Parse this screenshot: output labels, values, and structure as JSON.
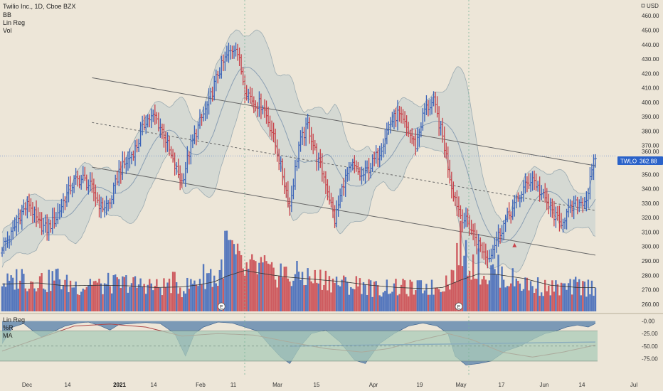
{
  "header": {
    "title": "Twilio Inc., 1D, Cboe BZX",
    "indicators": [
      "BB",
      "Lin Reg",
      "Vol"
    ]
  },
  "price_axis": {
    "currency": "USD",
    "currency_icon": "lock-icon",
    "ticks": [
      "460.00",
      "450.00",
      "440.00",
      "430.00",
      "420.00",
      "410.00",
      "400.00",
      "390.00",
      "380.00",
      "370.00",
      "360.00",
      "350.00",
      "340.00",
      "330.00",
      "320.00",
      "310.00",
      "300.00",
      "290.00",
      "280.00",
      "270.00",
      "260.00"
    ]
  },
  "last_price": {
    "symbol": "TWLO",
    "value": "362.88",
    "partial_label": "360.00"
  },
  "osc_panel": {
    "labels": [
      "Lin Reg",
      "%R",
      "MA"
    ],
    "ticks": [
      "-0.00",
      "-25.00",
      "-50.00",
      "-75.00"
    ]
  },
  "x_axis": {
    "labels": [
      {
        "text": "Dec",
        "bold": false
      },
      {
        "text": "14",
        "bold": false
      },
      {
        "text": "2021",
        "bold": true
      },
      {
        "text": "14",
        "bold": false
      },
      {
        "text": "Feb",
        "bold": false
      },
      {
        "text": "11",
        "bold": false
      },
      {
        "text": "Mar",
        "bold": false
      },
      {
        "text": "15",
        "bold": false
      },
      {
        "text": "Apr",
        "bold": false
      },
      {
        "text": "19",
        "bold": false
      },
      {
        "text": "May",
        "bold": false
      },
      {
        "text": "17",
        "bold": false
      },
      {
        "text": "Jun",
        "bold": false
      },
      {
        "text": "14",
        "bold": false
      },
      {
        "text": "Jul",
        "bold": false
      }
    ]
  },
  "colors": {
    "background": "#ede6d8",
    "up": "#3a63b8",
    "down": "#c8434b",
    "bb_fill": "#b9c9cf",
    "basis": "#8b9fb3",
    "osc_fill": "#4a78a8",
    "osc_band": "#a9cbb8",
    "ma_line": "#b04848",
    "trend_line": "#2c55c8",
    "price_badge": "#2a62c9"
  },
  "chart_data": {
    "type": "ohlc",
    "title": "Twilio Inc., 1D, Cboe BZX",
    "ylabel": "USD",
    "ylim": [
      255,
      467
    ],
    "osc_ylim": [
      -100,
      8
    ],
    "x_labels": [
      "Dec",
      "14",
      "2021",
      "14",
      "Feb",
      "11",
      "Mar",
      "15",
      "Apr",
      "19",
      "May",
      "17",
      "Jun",
      "14",
      "Jul"
    ],
    "close_key": [
      [
        0,
        300
      ],
      [
        5,
        308
      ],
      [
        10,
        322
      ],
      [
        15,
        330
      ],
      [
        20,
        316
      ],
      [
        25,
        312
      ],
      [
        30,
        320
      ],
      [
        35,
        334
      ],
      [
        40,
        345
      ],
      [
        45,
        347
      ],
      [
        50,
        340
      ],
      [
        55,
        327
      ],
      [
        60,
        330
      ],
      [
        65,
        352
      ],
      [
        70,
        360
      ],
      [
        75,
        370
      ],
      [
        80,
        388
      ],
      [
        85,
        390
      ],
      [
        90,
        378
      ],
      [
        95,
        358
      ],
      [
        100,
        345
      ],
      [
        105,
        370
      ],
      [
        110,
        386
      ],
      [
        115,
        400
      ],
      [
        120,
        420
      ],
      [
        125,
        432
      ],
      [
        130,
        440
      ],
      [
        135,
        410
      ],
      [
        140,
        400
      ],
      [
        145,
        398
      ],
      [
        150,
        380
      ],
      [
        155,
        355
      ],
      [
        160,
        328
      ],
      [
        165,
        370
      ],
      [
        170,
        384
      ],
      [
        175,
        362
      ],
      [
        180,
        345
      ],
      [
        185,
        318
      ],
      [
        190,
        345
      ],
      [
        195,
        356
      ],
      [
        200,
        348
      ],
      [
        205,
        356
      ],
      [
        210,
        366
      ],
      [
        215,
        384
      ],
      [
        220,
        392
      ],
      [
        225,
        382
      ],
      [
        230,
        370
      ],
      [
        235,
        395
      ],
      [
        240,
        400
      ],
      [
        245,
        376
      ],
      [
        250,
        342
      ],
      [
        255,
        322
      ],
      [
        260,
        314
      ],
      [
        265,
        302
      ],
      [
        270,
        292
      ],
      [
        275,
        305
      ],
      [
        280,
        318
      ],
      [
        285,
        328
      ],
      [
        290,
        340
      ],
      [
        295,
        348
      ],
      [
        300,
        336
      ],
      [
        305,
        326
      ],
      [
        310,
        316
      ],
      [
        315,
        324
      ],
      [
        320,
        330
      ],
      [
        325,
        333
      ],
      [
        330,
        362.88
      ]
    ],
    "volume_key": [
      [
        0,
        54
      ],
      [
        5,
        48
      ],
      [
        10,
        65
      ],
      [
        15,
        52
      ],
      [
        20,
        58
      ],
      [
        25,
        50
      ],
      [
        30,
        62
      ],
      [
        35,
        48
      ],
      [
        40,
        47
      ],
      [
        45,
        43
      ],
      [
        50,
        55
      ],
      [
        55,
        42
      ],
      [
        60,
        50
      ],
      [
        65,
        46
      ],
      [
        70,
        52
      ],
      [
        75,
        45
      ],
      [
        80,
        50
      ],
      [
        85,
        42
      ],
      [
        90,
        44
      ],
      [
        95,
        52
      ],
      [
        100,
        40
      ],
      [
        105,
        47
      ],
      [
        110,
        58
      ],
      [
        115,
        68
      ],
      [
        120,
        52
      ],
      [
        125,
        120
      ],
      [
        130,
        92
      ],
      [
        135,
        70
      ],
      [
        140,
        75
      ],
      [
        145,
        78
      ],
      [
        150,
        62
      ],
      [
        155,
        72
      ],
      [
        160,
        58
      ],
      [
        165,
        65
      ],
      [
        170,
        60
      ],
      [
        175,
        55
      ],
      [
        180,
        58
      ],
      [
        185,
        52
      ],
      [
        190,
        48
      ],
      [
        195,
        45
      ],
      [
        200,
        50
      ],
      [
        205,
        42
      ],
      [
        210,
        38
      ],
      [
        215,
        45
      ],
      [
        220,
        40
      ],
      [
        225,
        42
      ],
      [
        230,
        38
      ],
      [
        235,
        45
      ],
      [
        240,
        40
      ],
      [
        245,
        50
      ],
      [
        250,
        60
      ],
      [
        255,
        115
      ],
      [
        260,
        90
      ],
      [
        265,
        80
      ],
      [
        270,
        62
      ],
      [
        275,
        75
      ],
      [
        280,
        58
      ],
      [
        285,
        55
      ],
      [
        290,
        50
      ],
      [
        295,
        45
      ],
      [
        300,
        44
      ],
      [
        305,
        40
      ],
      [
        310,
        42
      ],
      [
        315,
        40
      ],
      [
        320,
        45
      ],
      [
        325,
        42
      ],
      [
        330,
        45
      ]
    ],
    "vol_ma_key": [
      [
        0,
        48
      ],
      [
        20,
        50
      ],
      [
        35,
        45
      ],
      [
        55,
        46
      ],
      [
        70,
        45
      ],
      [
        85,
        42
      ],
      [
        100,
        43
      ],
      [
        110,
        47
      ],
      [
        118,
        52
      ],
      [
        125,
        62
      ],
      [
        135,
        72
      ],
      [
        142,
        68
      ],
      [
        150,
        64
      ],
      [
        160,
        60
      ],
      [
        175,
        56
      ],
      [
        190,
        52
      ],
      [
        205,
        46
      ],
      [
        220,
        42
      ],
      [
        235,
        40
      ],
      [
        245,
        42
      ],
      [
        255,
        55
      ],
      [
        265,
        66
      ],
      [
        275,
        65
      ],
      [
        290,
        58
      ],
      [
        305,
        46
      ],
      [
        320,
        42
      ],
      [
        330,
        42
      ]
    ],
    "osc_key": [
      [
        0,
        -45
      ],
      [
        6,
        -12
      ],
      [
        12,
        -5
      ],
      [
        18,
        -22
      ],
      [
        22,
        -32
      ],
      [
        28,
        -22
      ],
      [
        35,
        -10
      ],
      [
        42,
        -4
      ],
      [
        48,
        -2
      ],
      [
        55,
        -10
      ],
      [
        60,
        -18
      ],
      [
        65,
        -7
      ],
      [
        72,
        -5
      ],
      [
        80,
        -3
      ],
      [
        88,
        -5
      ],
      [
        96,
        -25
      ],
      [
        102,
        -70
      ],
      [
        107,
        -25
      ],
      [
        112,
        -12
      ],
      [
        120,
        -2
      ],
      [
        128,
        -4
      ],
      [
        135,
        -12
      ],
      [
        142,
        -20
      ],
      [
        148,
        -45
      ],
      [
        155,
        -72
      ],
      [
        160,
        -85
      ],
      [
        166,
        -50
      ],
      [
        172,
        -25
      ],
      [
        180,
        -18
      ],
      [
        188,
        -42
      ],
      [
        196,
        -78
      ],
      [
        202,
        -85
      ],
      [
        210,
        -45
      ],
      [
        218,
        -25
      ],
      [
        226,
        -10
      ],
      [
        234,
        -4
      ],
      [
        242,
        -10
      ],
      [
        248,
        -25
      ],
      [
        252,
        -70
      ],
      [
        258,
        -88
      ],
      [
        265,
        -85
      ],
      [
        272,
        -80
      ],
      [
        280,
        -60
      ],
      [
        288,
        -50
      ],
      [
        296,
        -35
      ],
      [
        302,
        -25
      ],
      [
        308,
        -20
      ],
      [
        314,
        -12
      ],
      [
        320,
        -8
      ],
      [
        326,
        -12
      ],
      [
        330,
        -5
      ]
    ],
    "osc_ma_key": [
      [
        0,
        -60
      ],
      [
        20,
        -35
      ],
      [
        40,
        -10
      ],
      [
        60,
        -6
      ],
      [
        80,
        -12
      ],
      [
        100,
        -30
      ],
      [
        120,
        -25
      ],
      [
        140,
        -28
      ],
      [
        160,
        -42
      ],
      [
        180,
        -55
      ],
      [
        200,
        -62
      ],
      [
        215,
        -55
      ],
      [
        230,
        -40
      ],
      [
        248,
        -25
      ],
      [
        262,
        -38
      ],
      [
        278,
        -62
      ],
      [
        295,
        -72
      ],
      [
        312,
        -62
      ],
      [
        330,
        -48
      ]
    ],
    "lin_reg_channel": {
      "start": {
        "bar": 50,
        "mid": 386
      },
      "end": {
        "bar": 330,
        "mid": 325
      },
      "offset": 31
    },
    "osc_trend_line": {
      "start": [
        160,
        -50
      ],
      "end": [
        330,
        -42
      ]
    },
    "markers": [
      {
        "type": "earnings",
        "bar": 122,
        "label": "E"
      },
      {
        "type": "earnings",
        "bar": 254,
        "label": "E"
      },
      {
        "type": "triangle-up",
        "bar": 285,
        "price": 301
      }
    ]
  }
}
